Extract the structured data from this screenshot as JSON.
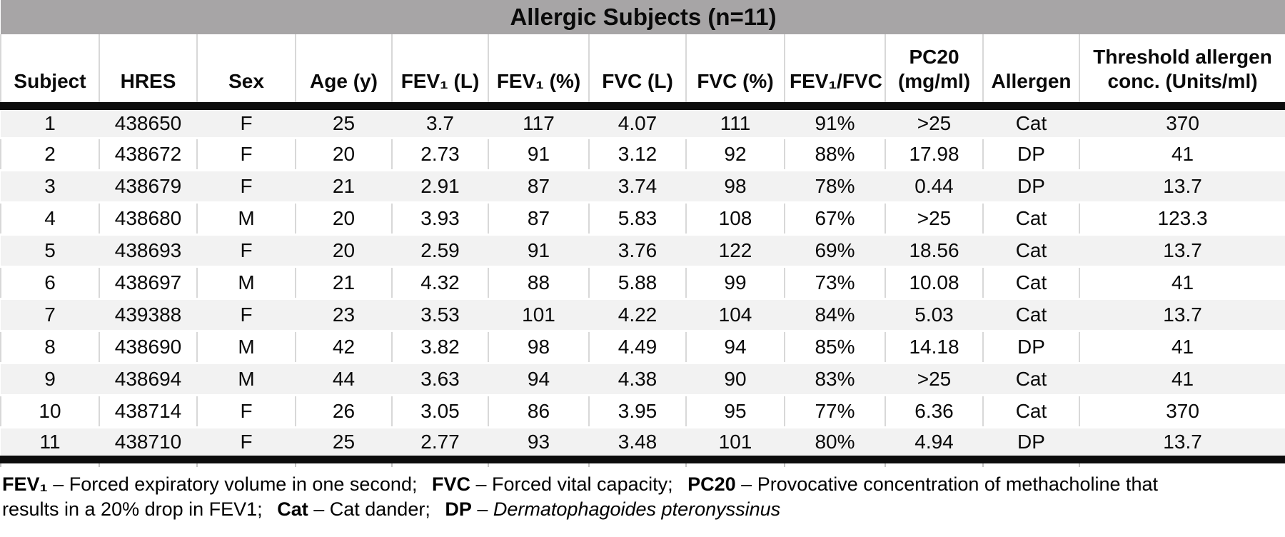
{
  "chart_data": {
    "type": "table",
    "title": "Allergic Subjects (n=11)",
    "columns": [
      "Subject",
      "HRES",
      "Sex",
      "Age (y)",
      "FEV₁ (L)",
      "FEV₁ (%)",
      "FVC (L)",
      "FVC (%)",
      "FEV₁/FVC",
      "PC20 (mg/ml)",
      "Allergen",
      "Threshold allergen conc. (Units/ml)"
    ],
    "rows": [
      [
        "1",
        "438650",
        "F",
        "25",
        "3.7",
        "117",
        "4.07",
        "111",
        "91%",
        ">25",
        "Cat",
        "370"
      ],
      [
        "2",
        "438672",
        "F",
        "20",
        "2.73",
        "91",
        "3.12",
        "92",
        "88%",
        "17.98",
        "DP",
        "41"
      ],
      [
        "3",
        "438679",
        "F",
        "21",
        "2.91",
        "87",
        "3.74",
        "98",
        "78%",
        "0.44",
        "DP",
        "13.7"
      ],
      [
        "4",
        "438680",
        "M",
        "20",
        "3.93",
        "87",
        "5.83",
        "108",
        "67%",
        ">25",
        "Cat",
        "123.3"
      ],
      [
        "5",
        "438693",
        "F",
        "20",
        "2.59",
        "91",
        "3.76",
        "122",
        "69%",
        "18.56",
        "Cat",
        "13.7"
      ],
      [
        "6",
        "438697",
        "M",
        "21",
        "4.32",
        "88",
        "5.88",
        "99",
        "73%",
        "10.08",
        "Cat",
        "41"
      ],
      [
        "7",
        "439388",
        "F",
        "23",
        "3.53",
        "101",
        "4.22",
        "104",
        "84%",
        "5.03",
        "Cat",
        "13.7"
      ],
      [
        "8",
        "438690",
        "M",
        "42",
        "3.82",
        "98",
        "4.49",
        "94",
        "85%",
        "14.18",
        "DP",
        "41"
      ],
      [
        "9",
        "438694",
        "M",
        "44",
        "3.63",
        "94",
        "4.38",
        "90",
        "83%",
        ">25",
        "Cat",
        "41"
      ],
      [
        "10",
        "438714",
        "F",
        "26",
        "3.05",
        "86",
        "3.95",
        "95",
        "77%",
        "6.36",
        "Cat",
        "370"
      ],
      [
        "11",
        "438710",
        "F",
        "25",
        "2.77",
        "93",
        "3.48",
        "101",
        "80%",
        "4.94",
        "DP",
        "13.7"
      ]
    ],
    "footnote": {
      "fev1_term": "FEV₁",
      "fev1_def": " – Forced expiratory volume in one second;",
      "fvc_term": "FVC",
      "fvc_def": " – Forced vital capacity;",
      "pc20_term": "PC20",
      "pc20_def": " – Provocative concentration of methacholine that",
      "line2_lead": "results in a 20% drop in FEV1;",
      "cat_term": "Cat",
      "cat_def": " – Cat dander;",
      "dp_term": "DP",
      "dp_sep": " – ",
      "dp_def": "Dermatophagoides pteronyssinus"
    },
    "colors": {
      "title_bar_bg": "#a7a5a6",
      "stripe_row_bg": "#f2f2f2",
      "column_border": "#d8d8d8",
      "thick_rule": "#0d0d0d",
      "text": "#000000"
    },
    "layout_hints": {
      "stripe_rows": "odd rows gray, even rows white",
      "header_rule": "thick black below header and below last row"
    }
  }
}
